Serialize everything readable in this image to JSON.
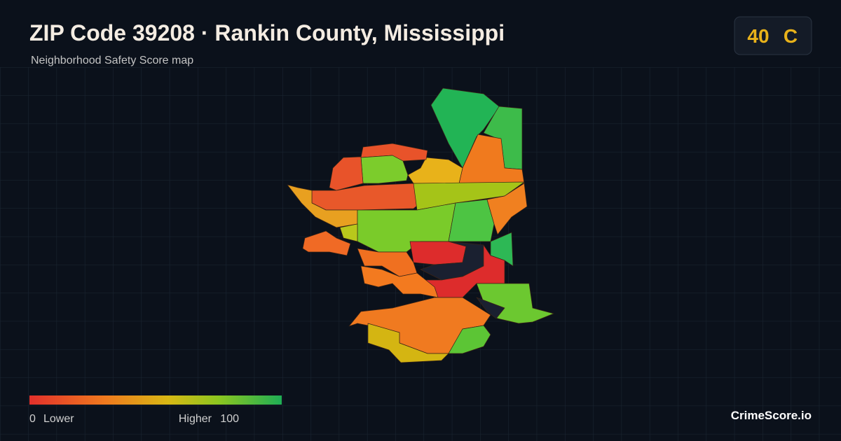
{
  "header": {
    "title": "ZIP Code 39208 · Rankin County, Mississippi",
    "subtitle": "Neighborhood Safety Score map"
  },
  "score": {
    "value": 40,
    "grade": "C"
  },
  "legend": {
    "min": 0,
    "min_label": "Lower",
    "max_label": "Higher",
    "max": 100
  },
  "footer": {
    "brand": "CrimeScore.io"
  }
}
